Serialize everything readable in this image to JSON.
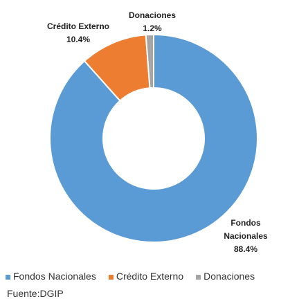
{
  "chart_data": {
    "type": "pie",
    "donut": true,
    "categories": [
      "Fondos Nacionales",
      "Crédito Externo",
      "Donaciones"
    ],
    "values": [
      88.4,
      10.4,
      1.2
    ],
    "value_labels": [
      "88.4%",
      "10.4%",
      "1.2%"
    ],
    "colors": [
      "#5b9bd5",
      "#ed7d31",
      "#a5a5a5"
    ],
    "legend": "bottom",
    "source": "Fuente:DGIP"
  }
}
